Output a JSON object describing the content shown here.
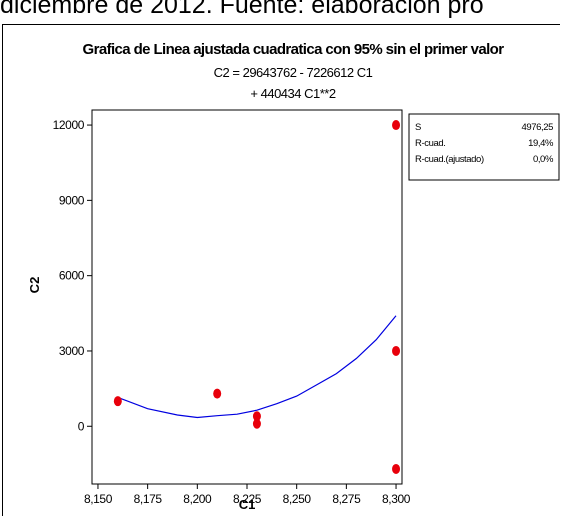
{
  "caption": {
    "text": "diciembre de 2012. Fuente: elaboración pro"
  },
  "chart_data": {
    "type": "scatter",
    "title": "Grafica de Linea ajustada cuadratica con 95% sin el primer valor",
    "equation_line1": "C2 = 29643762 - 7226612 C1",
    "equation_line2": "+ 440434 C1**2",
    "xlabel": "C1",
    "ylabel": "C2",
    "xlim": [
      8.147,
      8.303
    ],
    "ylim": [
      -2300,
      12600
    ],
    "x_ticks": [
      8.15,
      8.175,
      8.2,
      8.225,
      8.25,
      8.275,
      8.3
    ],
    "x_tick_labels": [
      "8,150",
      "8,175",
      "8,200",
      "8,225",
      "8,250",
      "8,275",
      "8,300"
    ],
    "y_ticks": [
      0,
      3000,
      6000,
      9000,
      12000
    ],
    "y_tick_labels": [
      "0",
      "3000",
      "6000",
      "9000",
      "12000"
    ],
    "points": [
      {
        "x": 8.16,
        "y": 1000
      },
      {
        "x": 8.21,
        "y": 1300
      },
      {
        "x": 8.23,
        "y": 400
      },
      {
        "x": 8.23,
        "y": 100
      },
      {
        "x": 8.3,
        "y": 12000
      },
      {
        "x": 8.3,
        "y": 3000
      },
      {
        "x": 8.3,
        "y": -1700
      }
    ],
    "fit_line": {
      "x": [
        8.16,
        8.175,
        8.19,
        8.2,
        8.21,
        8.22,
        8.23,
        8.24,
        8.25,
        8.26,
        8.27,
        8.28,
        8.29,
        8.3
      ],
      "y": [
        1150,
        700,
        450,
        350,
        420,
        480,
        640,
        900,
        1200,
        1650,
        2100,
        2700,
        3450,
        4400
      ]
    },
    "stats": [
      {
        "label": "S",
        "value": "4976,25"
      },
      {
        "label": "R-cuad.",
        "value": "19,4%"
      },
      {
        "label": "R-cuad.(ajustado)",
        "value": "0,0%"
      }
    ],
    "point_color": "#e8000b",
    "line_color": "#0000e0",
    "grid": false
  }
}
